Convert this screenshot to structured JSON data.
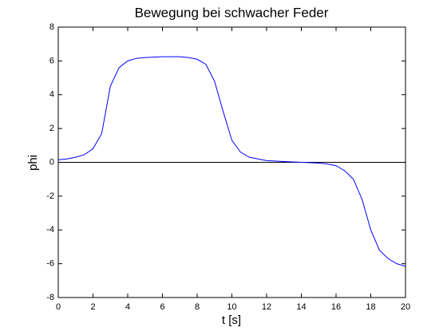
{
  "chart_data": {
    "type": "line",
    "title": "Bewegung bei schwacher Feder",
    "xlabel": "t [s]",
    "ylabel": "phi",
    "x": [
      0,
      0.5,
      1,
      1.5,
      2,
      2.5,
      3,
      3.5,
      4,
      4.5,
      5,
      6,
      7,
      7.5,
      8,
      8.5,
      9,
      9.5,
      10,
      10.5,
      11,
      12,
      13,
      14,
      15,
      15.5,
      16,
      16.5,
      17,
      17.5,
      18,
      18.5,
      19,
      19.5,
      20
    ],
    "series": [
      {
        "name": "phi",
        "color": "#0000ff",
        "values": [
          0.15,
          0.2,
          0.3,
          0.45,
          0.8,
          1.7,
          4.5,
          5.6,
          6.0,
          6.15,
          6.2,
          6.25,
          6.25,
          6.2,
          6.1,
          5.8,
          4.8,
          3.0,
          1.3,
          0.6,
          0.3,
          0.1,
          0.05,
          0.0,
          -0.05,
          -0.1,
          -0.2,
          -0.5,
          -1.0,
          -2.2,
          -4.0,
          -5.2,
          -5.7,
          -6.0,
          -6.15
        ]
      }
    ],
    "hline": 0,
    "hline_color": "#000000",
    "xlim": [
      0,
      20
    ],
    "xticks": [
      0,
      2,
      4,
      6,
      8,
      10,
      12,
      14,
      16,
      18,
      20
    ],
    "ylim": [
      -8,
      8
    ],
    "yticks": [
      -8,
      -6,
      -4,
      -2,
      0,
      2,
      4,
      6,
      8
    ],
    "grid": false
  }
}
